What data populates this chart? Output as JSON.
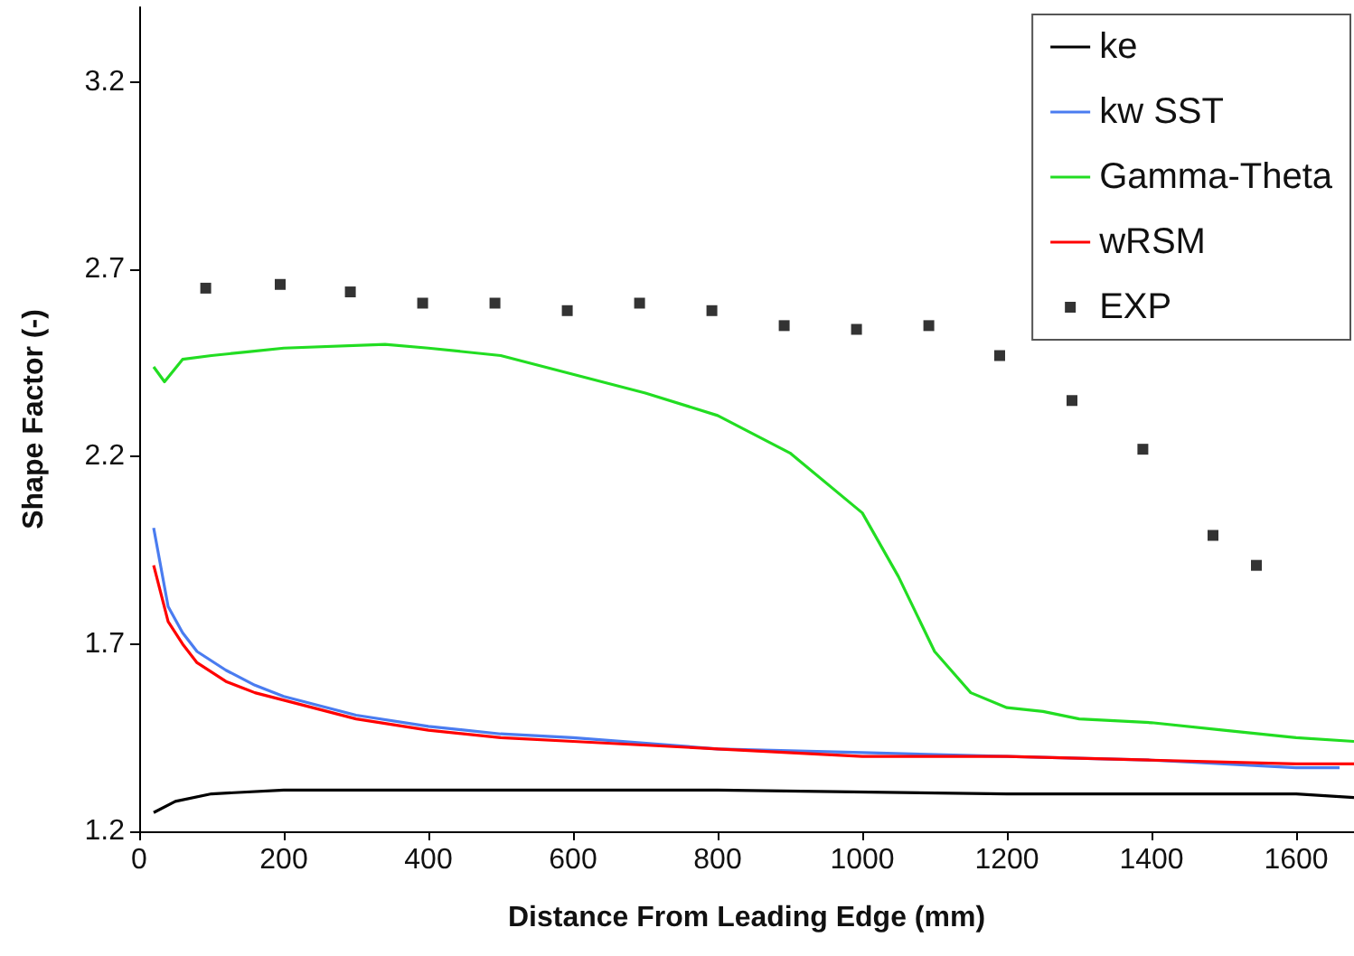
{
  "chart_data": {
    "type": "line",
    "xlabel": "Distance From Leading Edge (mm)",
    "ylabel": "Shape Factor (-)",
    "xlim": [
      0,
      1680
    ],
    "xticks": [
      0,
      200,
      400,
      600,
      800,
      1000,
      1200,
      1400,
      1600
    ],
    "ylim": [
      1.2,
      3.4
    ],
    "yticks": [
      1.2,
      1.7,
      2.2,
      2.7,
      3.2
    ],
    "grid": false,
    "legend": "top right",
    "line_style": "solid",
    "series": [
      {
        "name": "ke",
        "color": "#000000",
        "x": [
          20,
          50,
          100,
          200,
          400,
          800,
          1200,
          1600,
          1680
        ],
        "values": [
          1.25,
          1.28,
          1.3,
          1.31,
          1.31,
          1.31,
          1.3,
          1.3,
          1.29
        ]
      },
      {
        "name": "kw SST",
        "color": "#4a7cf0",
        "x": [
          20,
          40,
          60,
          80,
          120,
          160,
          200,
          300,
          400,
          500,
          600,
          800,
          1000,
          1200,
          1400,
          1600,
          1660
        ],
        "values": [
          2.01,
          1.8,
          1.73,
          1.68,
          1.63,
          1.59,
          1.56,
          1.51,
          1.48,
          1.46,
          1.45,
          1.42,
          1.41,
          1.4,
          1.39,
          1.37,
          1.37
        ]
      },
      {
        "name": "Gamma-Theta",
        "color": "#22dd22",
        "x": [
          20,
          35,
          60,
          100,
          150,
          200,
          340,
          400,
          500,
          600,
          700,
          800,
          900,
          1000,
          1050,
          1100,
          1150,
          1200,
          1250,
          1300,
          1400,
          1500,
          1600,
          1680
        ],
        "values": [
          2.44,
          2.4,
          2.46,
          2.47,
          2.48,
          2.49,
          2.5,
          2.49,
          2.47,
          2.42,
          2.37,
          2.31,
          2.21,
          2.05,
          1.88,
          1.68,
          1.57,
          1.53,
          1.52,
          1.5,
          1.49,
          1.47,
          1.45,
          1.44
        ]
      },
      {
        "name": "wRSM",
        "color": "#ff0000",
        "x": [
          20,
          40,
          60,
          80,
          120,
          160,
          200,
          300,
          400,
          500,
          600,
          800,
          1000,
          1200,
          1400,
          1600,
          1680
        ],
        "values": [
          1.91,
          1.76,
          1.7,
          1.65,
          1.6,
          1.57,
          1.55,
          1.5,
          1.47,
          1.45,
          1.44,
          1.42,
          1.4,
          1.4,
          1.39,
          1.38,
          1.38
        ]
      },
      {
        "name": "EXP",
        "type": "scatter",
        "marker": "square",
        "color": "#000000",
        "x": [
          92,
          195,
          292,
          392,
          492,
          592,
          692,
          792,
          892,
          992,
          1092,
          1190,
          1290,
          1388,
          1485,
          1545
        ],
        "values": [
          2.65,
          2.66,
          2.64,
          2.61,
          2.61,
          2.59,
          2.61,
          2.59,
          2.55,
          2.54,
          2.55,
          2.47,
          2.35,
          2.22,
          1.99,
          1.91
        ]
      }
    ]
  }
}
